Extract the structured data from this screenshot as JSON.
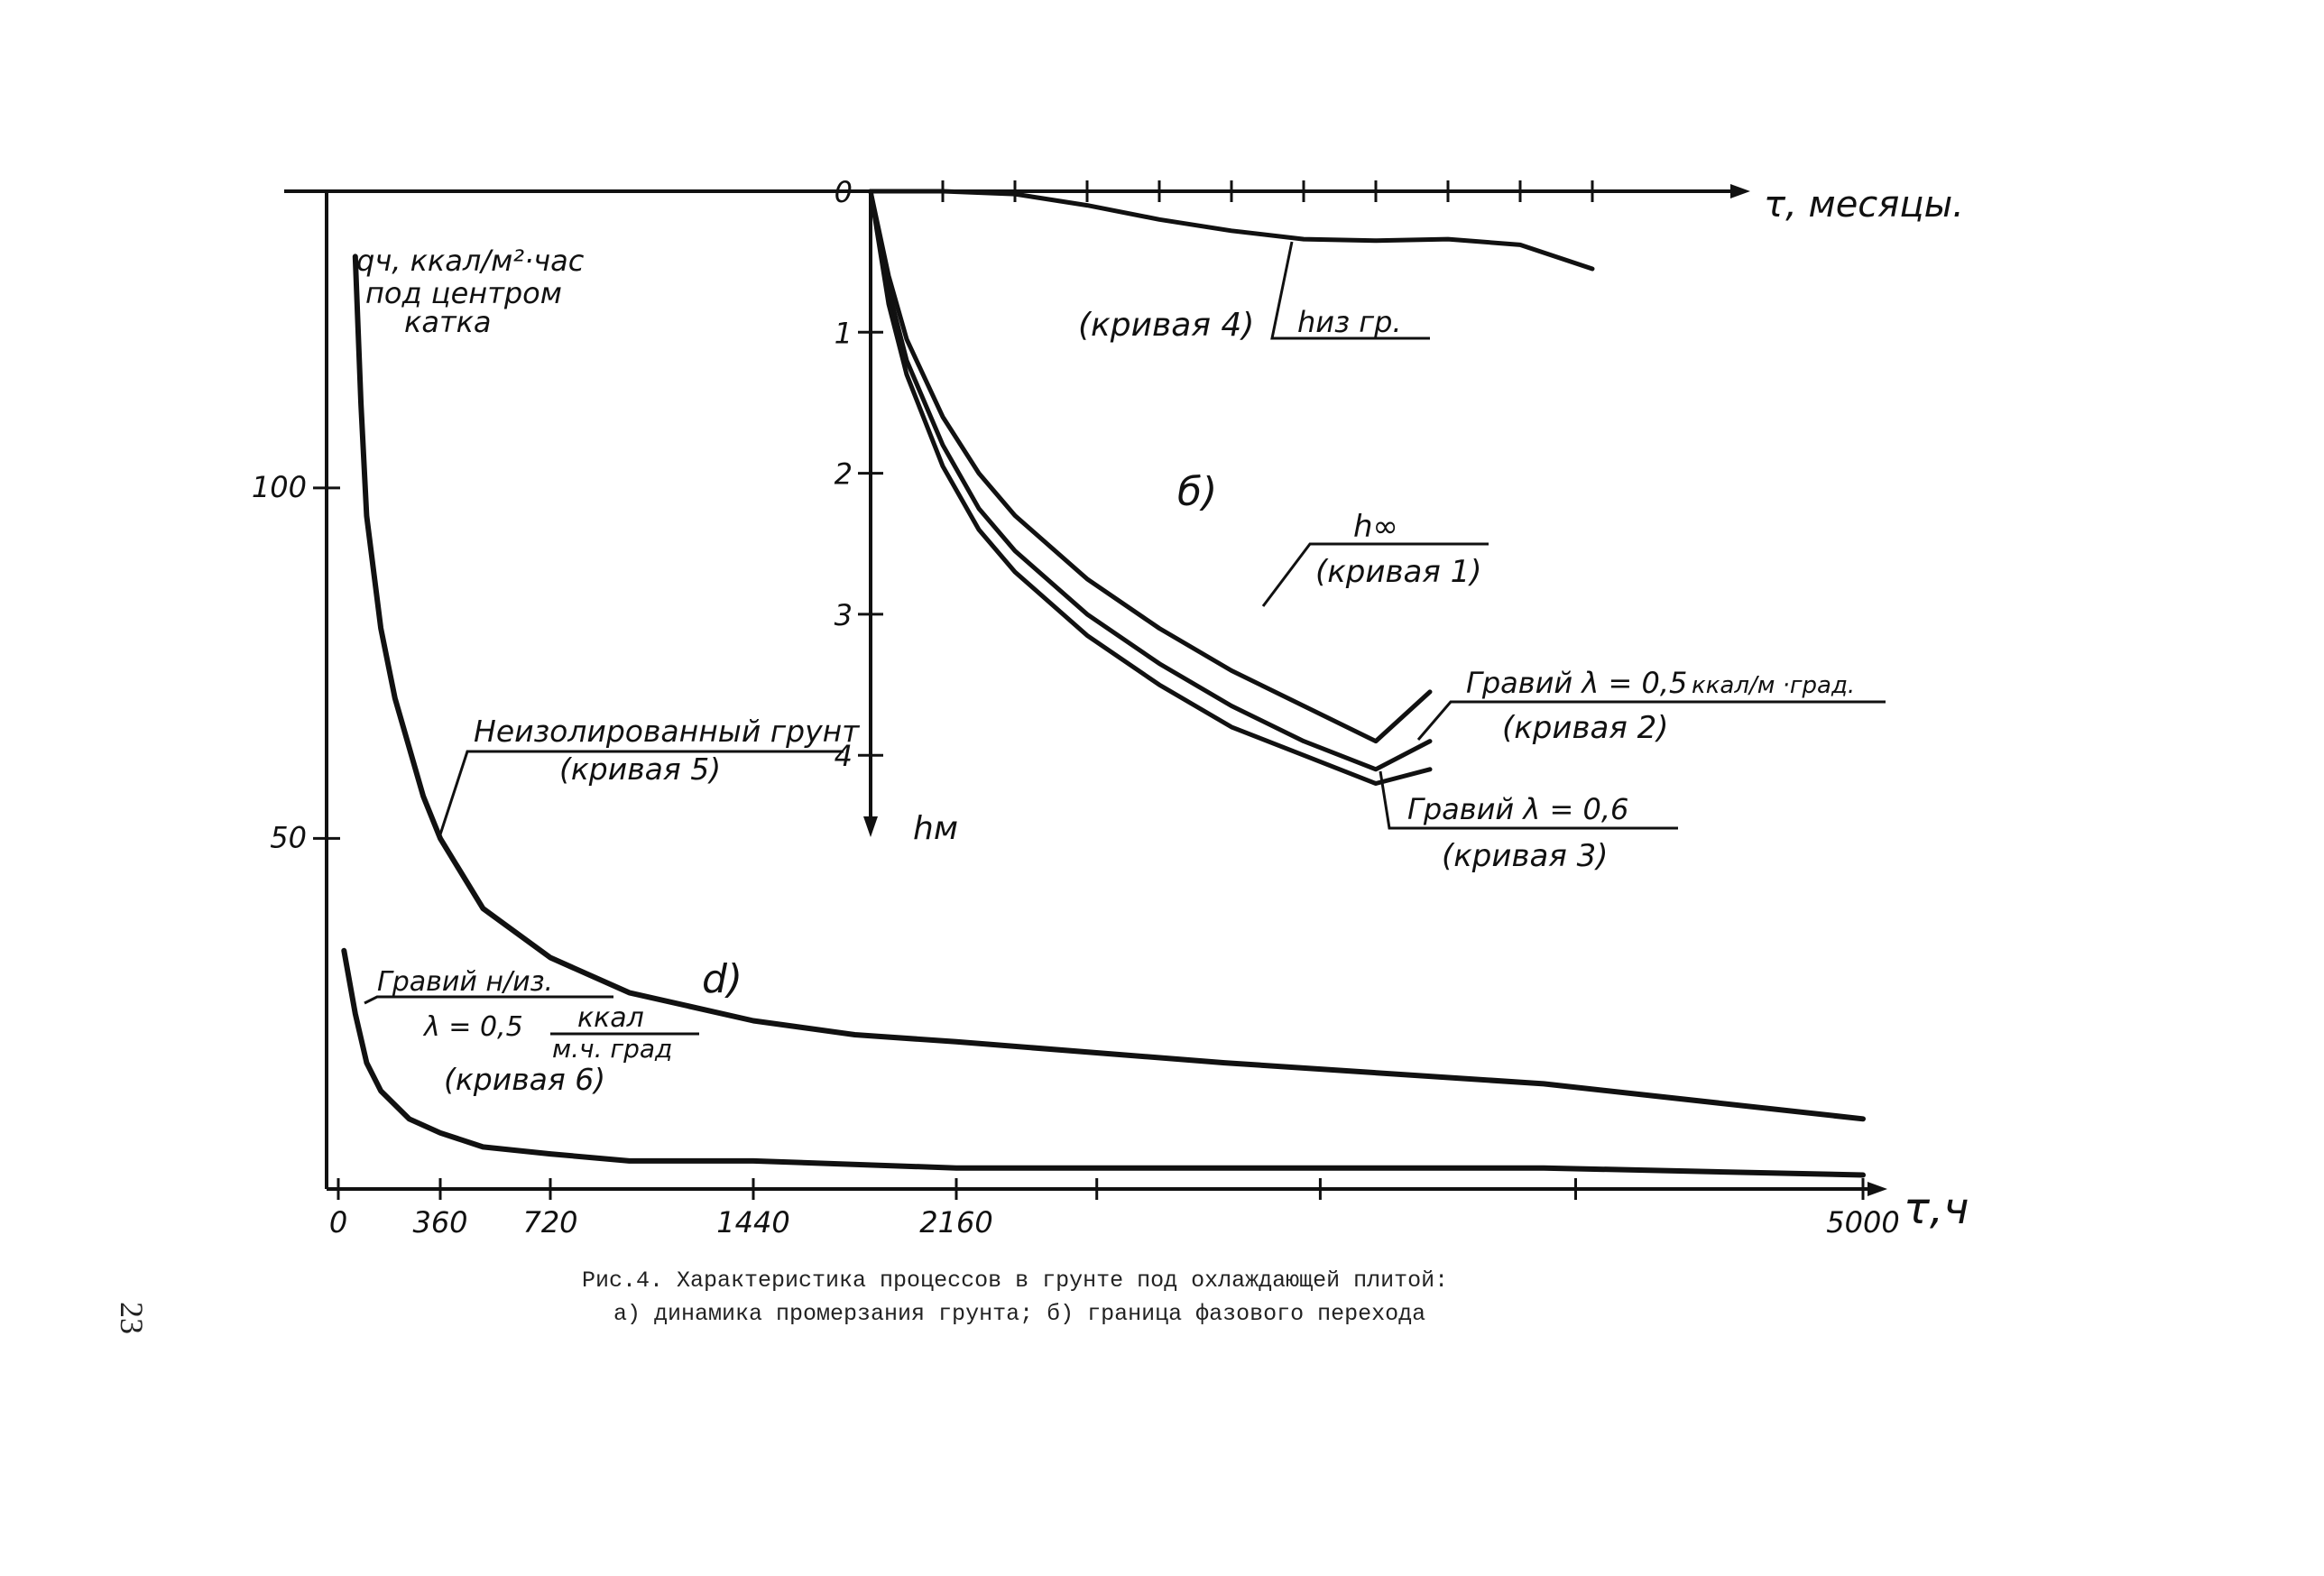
{
  "chart_data": [
    {
      "id": "a",
      "type": "line",
      "panel_label": "d)",
      "xlabel": "τ,ч",
      "ylabel_lines": [
        "qч, ккал/м²·час",
        "под центром",
        "катка"
      ],
      "x_tick_labels": [
        "0",
        "360",
        "720",
        "1440",
        "2160",
        "5000"
      ],
      "x_tick_values": [
        0,
        360,
        720,
        1440,
        2160,
        5000
      ],
      "y_tick_labels": [
        "100",
        "50"
      ],
      "y_tick_values": [
        100,
        50
      ],
      "xlim": [
        0,
        5000
      ],
      "ylim": [
        0,
        140
      ],
      "series": [
        {
          "name": "Неизолированный грунт (кривая 5)",
          "x": [
            60,
            80,
            100,
            150,
            200,
            300,
            360,
            500,
            720,
            1000,
            1440,
            1800,
            2160,
            3000,
            4000,
            5000
          ],
          "y": [
            133,
            112,
            96,
            80,
            70,
            56,
            50,
            40,
            33,
            28,
            24,
            22,
            21,
            18,
            15,
            10
          ]
        },
        {
          "name": "Гравий н/из. λ=0,5 ккал/м.ч.град (кривая 6)",
          "x": [
            20,
            60,
            100,
            150,
            250,
            360,
            500,
            720,
            1000,
            1440,
            2160,
            3000,
            4000,
            5000
          ],
          "y": [
            34,
            25,
            18,
            14,
            10,
            8,
            6,
            5,
            4,
            4,
            3,
            3,
            3,
            2
          ]
        }
      ],
      "annotations": {
        "curve5_label": "Неизолированный грунт",
        "curve5_sub": "(кривая 5)",
        "curve6_label_1": "Гравий н/из.",
        "curve6_label_2": "λ = 0,5",
        "curve6_unit_top": "ккал",
        "curve6_unit_bottom": "м.ч. град",
        "curve6_sub": "(кривая 6)"
      }
    },
    {
      "id": "b",
      "type": "line",
      "panel_label": "б)",
      "xlabel": "τ, месяцы.",
      "ylabel": "hм",
      "x_ticks_count": 10,
      "xlim": [
        0,
        12
      ],
      "y_tick_labels": [
        "0",
        "1",
        "2",
        "3",
        "4"
      ],
      "y_tick_values": [
        0,
        1,
        2,
        3,
        4
      ],
      "ylim": [
        0,
        4.5
      ],
      "y_inverted": true,
      "series": [
        {
          "name": "hиз гр. (кривая 4)",
          "x": [
            0,
            1,
            2,
            3,
            4,
            5,
            6,
            7,
            8,
            9,
            10
          ],
          "y": [
            0,
            0,
            0.02,
            0.1,
            0.2,
            0.28,
            0.34,
            0.35,
            0.34,
            0.38,
            0.55
          ]
        },
        {
          "name": "h∞ (кривая 1)",
          "x": [
            0,
            0.25,
            0.5,
            1,
            1.5,
            2,
            3,
            4,
            5,
            6,
            7,
            7.75
          ],
          "y": [
            0,
            0.6,
            1.05,
            1.6,
            2.0,
            2.3,
            2.75,
            3.1,
            3.4,
            3.65,
            3.9,
            3.55
          ]
        },
        {
          "name": "Гравий λ=0,5 ккал/м·град. (кривая 2)",
          "x": [
            0,
            0.25,
            0.5,
            1,
            1.5,
            2,
            3,
            4,
            5,
            6,
            7,
            7.75
          ],
          "y": [
            0,
            0.7,
            1.2,
            1.8,
            2.25,
            2.55,
            3.0,
            3.35,
            3.65,
            3.9,
            4.1,
            3.9
          ]
        },
        {
          "name": "Гравий λ=0,6 (кривая 3)",
          "x": [
            0,
            0.25,
            0.5,
            1,
            1.5,
            2,
            3,
            4,
            5,
            6,
            7,
            7.75
          ],
          "y": [
            0,
            0.8,
            1.3,
            1.95,
            2.4,
            2.7,
            3.15,
            3.5,
            3.8,
            4.0,
            4.2,
            4.1
          ]
        }
      ],
      "annotations": {
        "curve4_label": "(кривая 4)",
        "curve4_sub": "hиз гр.",
        "curve1_top": "h∞",
        "curve1_sub": "(кривая 1)",
        "curve2_top": "Гравий λ = 0,5",
        "curve2_unit": "ккал/м ·град.",
        "curve2_sub": "(кривая 2)",
        "curve3_top": "Гравий λ = 0,6",
        "curve3_sub": "(кривая 3)"
      }
    }
  ],
  "caption": {
    "line1": "Рис.4. Характеристика процессов в грунте под охлаждающей плитой:",
    "line2": "а) динамика промерзания грунта; б) граница фазового перехода"
  },
  "page_number": "23",
  "colors": {
    "ink": "#111111",
    "background": "#ffffff"
  }
}
